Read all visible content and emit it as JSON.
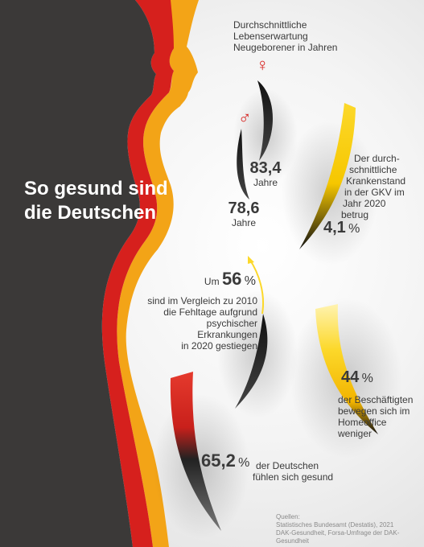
{
  "title": {
    "line1": "So gesund sind",
    "line2": "die Deutschen"
  },
  "life_expectancy": {
    "heading_line1": "Durchschnittliche",
    "heading_line2": "Lebenserwartung",
    "heading_line3": "Neugeborener in Jahren",
    "female_symbol": "♀",
    "male_symbol": "♂",
    "female_value": "83,4",
    "female_unit": "Jahre",
    "male_value": "78,6",
    "male_unit": "Jahre"
  },
  "sick_leave": {
    "line1": "Der durch-",
    "line2": "schnittliche",
    "line3": "Krankenstand",
    "line4": "in der GKV im",
    "line5": "Jahr 2020",
    "line6": "betrug",
    "value": "4,1",
    "unit": "%"
  },
  "mental_health": {
    "prefix": "Um",
    "value": "56",
    "unit": "%",
    "line1": "sind im Vergleich zu 2010",
    "line2": "die Fehltage aufgrund",
    "line3": "psychischer Erkrankungen",
    "line4": "in 2020 gestiegen"
  },
  "home_office": {
    "value": "44",
    "unit": "%",
    "line1": "der Beschäftigten",
    "line2": "bewegen sich im",
    "line3": "Homeoffice",
    "line4": "weniger"
  },
  "healthy": {
    "value": "65,2",
    "unit": "%",
    "line1": "der Deutschen",
    "line2": "fühlen sich gesund"
  },
  "sources": {
    "label": "Quellen:",
    "line1": "Statistisches Bundesamt (Destatis), 2021",
    "line2": "DAK-Gesundheit, Forsa-Umfrage der DAK-Gesundheit"
  },
  "colors": {
    "dark": "#3b3938",
    "red": "#d6201d",
    "orange": "#f3a417",
    "yellow": "#fcd82a",
    "black": "#1a1a1a",
    "text": "#3a3a3a"
  }
}
